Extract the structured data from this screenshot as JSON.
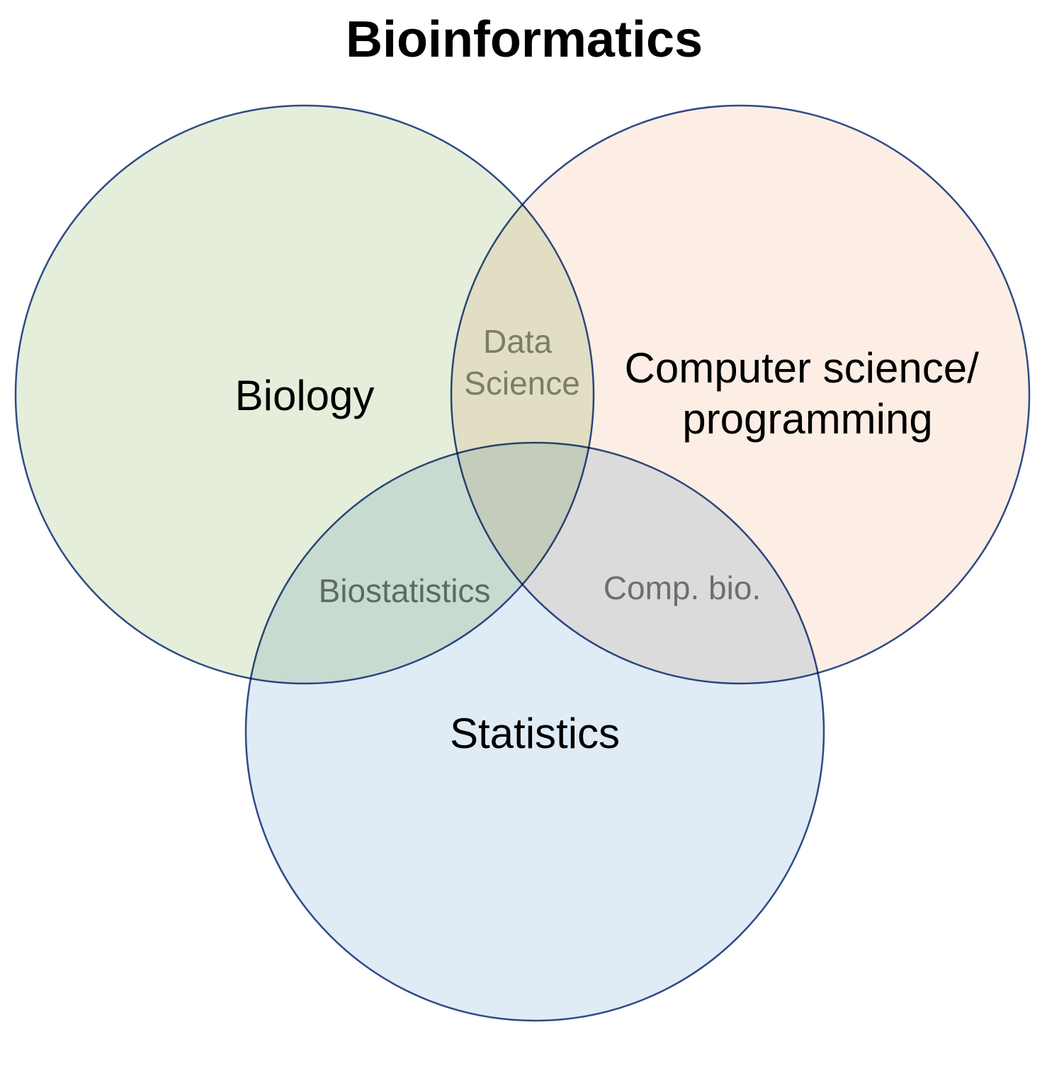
{
  "title": "Bioinformatics",
  "sets": [
    {
      "id": "biology",
      "lines": [
        "Biology"
      ],
      "fill": "#E4EEDA"
    },
    {
      "id": "computer-science",
      "lines": [
        "Computer science/",
        "programming"
      ],
      "fill": "#FCEEE4"
    },
    {
      "id": "statistics",
      "lines": [
        "Statistics"
      ],
      "fill": "#DFEBF5"
    }
  ],
  "outline_color": "#2F4A86",
  "overlaps": [
    {
      "id": "data-science",
      "sets": [
        "biology",
        "computer-science"
      ],
      "lines": [
        "Data",
        "Science"
      ],
      "color": "#7B7E67"
    },
    {
      "id": "biostatistics",
      "sets": [
        "biology",
        "statistics"
      ],
      "lines": [
        "Biostatistics"
      ],
      "color": "#5E6B5E"
    },
    {
      "id": "comp-bio",
      "sets": [
        "computer-science",
        "statistics"
      ],
      "lines": [
        "Comp. bio."
      ],
      "color": "#6E6E72"
    }
  ]
}
